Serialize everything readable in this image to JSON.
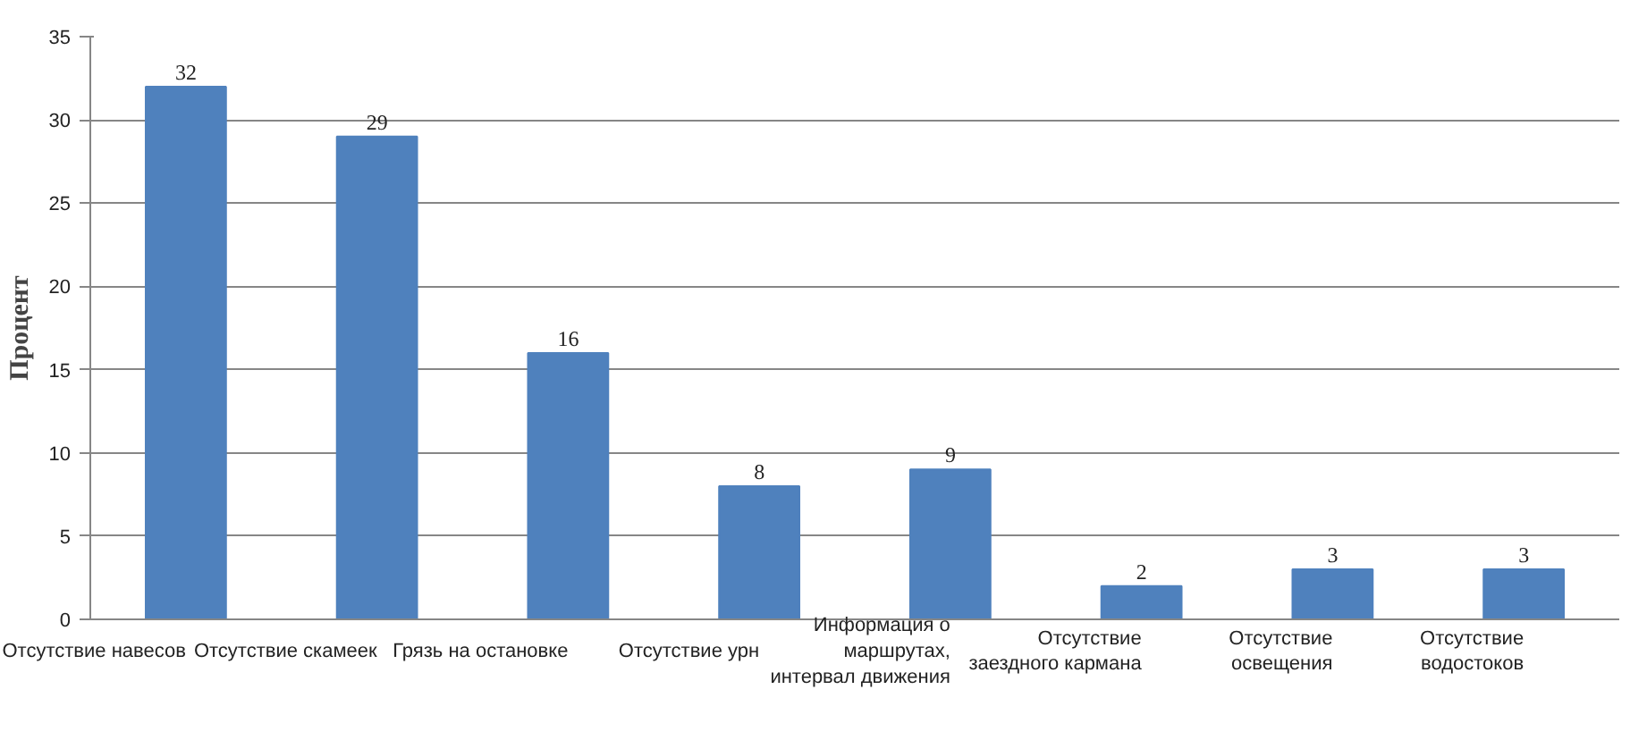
{
  "chart_data": {
    "type": "bar",
    "ylabel": "Процент",
    "categories": [
      "Отсутствие навесов",
      "Отсутствие скамеек",
      "Грязь на остановке",
      "Отсутствие урн",
      "Информация о\nмаршрутах,\nинтервал движения",
      "Отсутствие\nзаездного кармана",
      "Отсутствие\nосвещения",
      "Отсутствие\nводостоков"
    ],
    "values": [
      32,
      29,
      16,
      8,
      9,
      2,
      3,
      3
    ],
    "color": "#4f81bd",
    "ylim": [
      0,
      35
    ],
    "yticks": [
      0,
      5,
      10,
      15,
      20,
      25,
      30,
      35
    ],
    "grid": "y",
    "data_labels": true
  }
}
